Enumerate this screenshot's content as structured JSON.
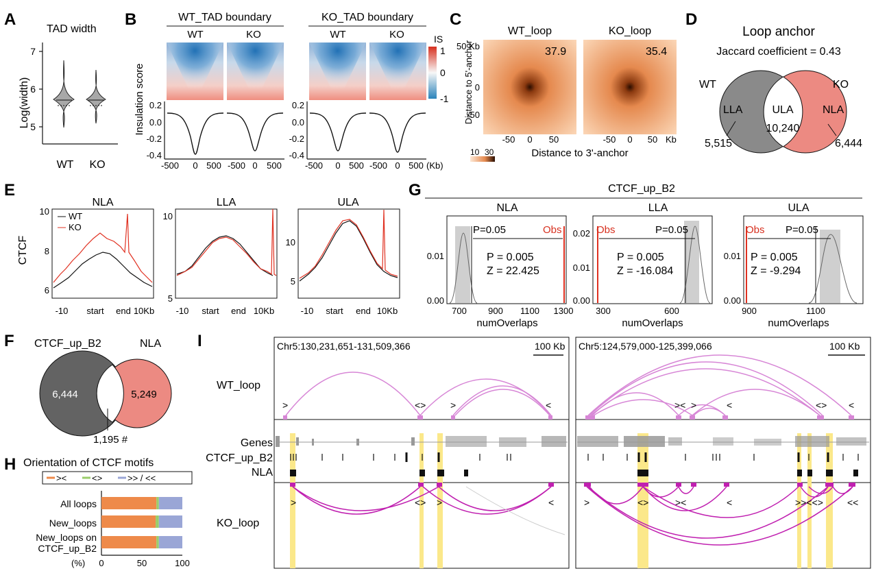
{
  "panel_letters": [
    "A",
    "B",
    "C",
    "D",
    "E",
    "F",
    "G",
    "H",
    "I"
  ],
  "colors": {
    "wt_gray": "#7a7a7a",
    "ko_red": "#e8837a",
    "line_red": "#e03020",
    "orange": "#ee8a4a",
    "green": "#9acd6a",
    "blue": "#9aa6d6",
    "yellow": "#fbe88a",
    "magenta": "#c020b0",
    "pink": "#d786d6"
  },
  "panelA": {
    "title": "TAD width",
    "ylabel": "Log(width)",
    "yticks": [
      "7",
      "6",
      "5"
    ],
    "groups": [
      "WT",
      "KO"
    ]
  },
  "panelB": {
    "groups": [
      {
        "title": "WT_TAD boundary",
        "cols": [
          "WT",
          "KO"
        ]
      },
      {
        "title": "KO_TAD boundary",
        "cols": [
          "WT",
          "KO"
        ]
      }
    ],
    "ylabel": "Insulation score",
    "yticks": [
      "0.2",
      "0.0",
      "-0.2",
      "-0.4"
    ],
    "xticks": [
      "-500",
      "0",
      "500"
    ],
    "xunit": "(Kb)",
    "cbar_title": "IS",
    "cbar_ticks": [
      "1",
      "0",
      "-1"
    ]
  },
  "panelC": {
    "maps": [
      {
        "title": "WT_loop",
        "value": "37.9"
      },
      {
        "title": "KO_loop",
        "value": "35.4"
      }
    ],
    "ylabel": "Distance to 5'-anchor",
    "yticks": [
      "50 Kb",
      "0",
      "-50"
    ],
    "xticks": [
      "-50",
      "0",
      "50"
    ],
    "xunit": "Kb",
    "xlabel": "Distance to 3'-anchor",
    "cbar_ticks": [
      "10",
      "30"
    ]
  },
  "panelD": {
    "title": "Loop anchor",
    "subtitle": "Jaccard coefficient = 0.43",
    "left": "WT",
    "right": "KO",
    "lla": "LLA",
    "ula": "ULA",
    "nla": "NLA",
    "center_value": "10,240",
    "left_value": "5,515",
    "right_value": "6,444"
  },
  "panelE": {
    "ylabel": "CTCF",
    "plots": [
      {
        "title": "NLA",
        "yticks": [
          "10",
          "8",
          "6"
        ]
      },
      {
        "title": "LLA",
        "yticks": [
          "10",
          "5"
        ]
      },
      {
        "title": "ULA",
        "yticks": [
          "10",
          "5"
        ]
      }
    ],
    "legend": [
      "WT",
      "KO"
    ],
    "xticks": [
      "-10",
      "start",
      "end",
      "10Kb"
    ]
  },
  "panelF": {
    "left": "CTCF_up_B2",
    "right": "NLA",
    "left_value": "6,444",
    "right_value": "5,249",
    "overlap": "1,195 #"
  },
  "panelG": {
    "title": "CTCF_up_B2",
    "xlabel": "numOverlaps",
    "plots": [
      {
        "name": "NLA",
        "p_thresh": "P=0.05",
        "obs": "Obs",
        "p": "P = 0.005",
        "z": "Z = 22.425",
        "yticks": [
          "0.01",
          "0.00"
        ],
        "xticks": [
          "700",
          "900",
          "1100",
          "1300"
        ]
      },
      {
        "name": "LLA",
        "p_thresh": "P=0.05",
        "obs": "Obs",
        "p": "P = 0.005",
        "z": "Z = -16.084",
        "yticks": [
          "0.02",
          "0.01",
          "0.00"
        ],
        "xticks": [
          "300",
          "600"
        ]
      },
      {
        "name": "ULA",
        "p_thresh": "P=0.05",
        "obs": "Obs",
        "p": "P = 0.005",
        "z": "Z = -9.294",
        "yticks": [
          "0.01",
          "0.00"
        ],
        "xticks": [
          "900",
          "1100"
        ]
      }
    ]
  },
  "panelH": {
    "title": "Orientation of CTCF motifs",
    "legend": [
      "><",
      "<>",
      ">> / <<"
    ],
    "rows": [
      "All loops",
      "New_loops",
      "New_loops on",
      "CTCF_up_B2"
    ],
    "xticks": [
      "0",
      "50",
      "100"
    ],
    "xunit": "(%)"
  },
  "panelI": {
    "regions": [
      "Chr5:130,231,651-131,509,366",
      "Chr5:124,579,000-125,399,066"
    ],
    "scale": "100 Kb",
    "tracks": [
      "WT_loop",
      "Genes",
      "CTCF_up_B2",
      "NLA",
      "KO_loop"
    ],
    "wt_marks1": [
      ">",
      "<>",
      ">",
      "<"
    ],
    "wt_marks2": [
      "><",
      ">",
      "<",
      "<>",
      "<"
    ],
    "ko_marks1": [
      ">",
      "<>",
      ">",
      "<"
    ],
    "ko_marks2": [
      ">",
      "<>",
      "><",
      "<",
      ">><<>",
      "<<"
    ]
  },
  "chart_data": [
    {
      "type": "bar",
      "title": "Orientation of CTCF motifs",
      "categories": [
        "All loops",
        "New_loops",
        "New_loops on CTCF_up_B2"
      ],
      "series": [
        {
          "name": "><",
          "values": [
            68,
            67,
            68
          ]
        },
        {
          "name": "<>",
          "values": [
            3,
            4,
            3
          ]
        },
        {
          "name": ">> / <<",
          "values": [
            29,
            29,
            29
          ]
        }
      ],
      "xlim": [
        0,
        100
      ],
      "xlabel": "(%)"
    }
  ]
}
